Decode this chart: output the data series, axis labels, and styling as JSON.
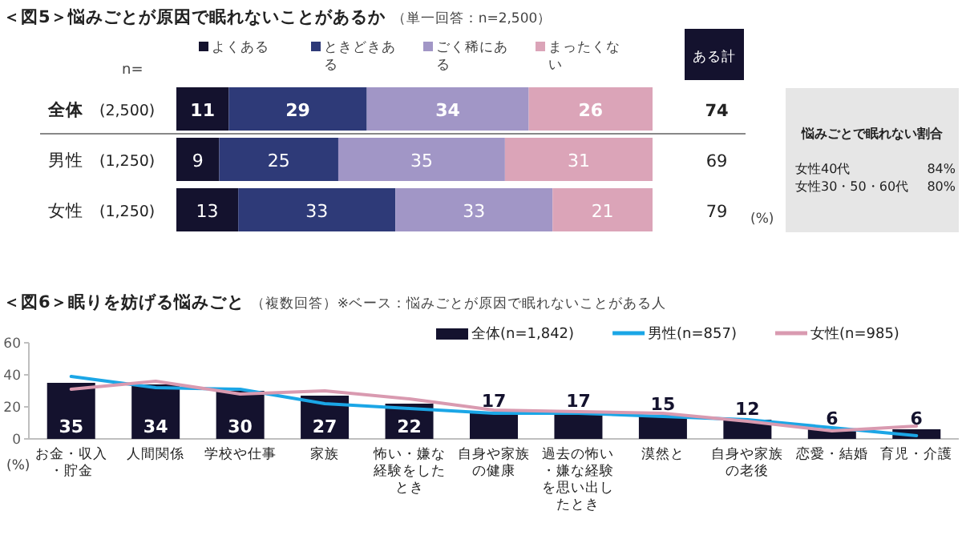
{
  "chart_data": [
    {
      "type": "bar",
      "orientation": "horizontal",
      "stacked": true,
      "title": "＜図5＞悩みごとが原因で眠れないことがあるか",
      "subtitle": "（単一回答：n=2,500）",
      "categories": [
        "全体",
        "男性",
        "女性"
      ],
      "xlim": [
        0,
        100
      ],
      "tick_labels": false,
      "legend": "top",
      "data_labels": true,
      "annotations": [
        "n=",
        "(2,500)",
        "(1,250)",
        "(1,250)",
        "ある計",
        "74",
        "69",
        "79",
        "(%)"
      ],
      "series": [
        {
          "name": "よくある",
          "color": "#14122e",
          "values": [
            11,
            9,
            13
          ]
        },
        {
          "name": "ときどきある",
          "color": "#2e3a78",
          "values": [
            29,
            25,
            33
          ]
        },
        {
          "name": "ごく稀にある",
          "color": "#a196c6",
          "values": [
            34,
            35,
            33
          ]
        },
        {
          "name": "まったくない",
          "color": "#dba4b8",
          "values": [
            26,
            31,
            21
          ]
        }
      ]
    },
    {
      "type": "other",
      "title": "悩みごとで眠れない割合",
      "annotations": [
        "女性40代",
        "84%",
        "女性30・50・60代",
        "80%"
      ]
    },
    {
      "type": "bar",
      "title": "＜図6＞眠りを妨げる悩みごと",
      "subtitle": "（複数回答）※ベース：悩みごとが原因で眠れないことがある人",
      "categories": [
        "お金・収入・貯金",
        "人間関係",
        "学校や仕事",
        "家族",
        "怖い・嫌な経験をしたとき",
        "自身や家族の健康",
        "過去の怖い・嫌な経験を思い出したとき",
        "漠然と",
        "自身や家族の老後",
        "恋愛・結婚",
        "育児・介護"
      ],
      "ylim": [
        0,
        60
      ],
      "yticks": [
        0,
        20,
        40,
        60
      ],
      "legend": "top right",
      "annotations": [
        "(%)"
      ],
      "series": [
        {
          "name": "全体(n=1,842)",
          "type": "bar",
          "color": "#14122e",
          "values": [
            35,
            34,
            30,
            27,
            22,
            17,
            17,
            15,
            12,
            6,
            6
          ],
          "value_labels": [
            "35",
            "34",
            "30",
            "27",
            "22",
            "17",
            "17",
            "15",
            "12",
            "6",
            "6"
          ]
        },
        {
          "name": "男性(n=857)",
          "type": "line",
          "color": "#1ba6e6",
          "values": [
            39,
            32,
            31,
            22,
            19,
            16,
            16,
            14,
            12,
            7,
            2
          ]
        },
        {
          "name": "女性(n=985)",
          "type": "line",
          "color": "#d99ab0",
          "values": [
            31,
            36,
            28,
            30,
            25,
            18,
            17,
            16,
            11,
            5,
            8
          ]
        }
      ]
    }
  ]
}
